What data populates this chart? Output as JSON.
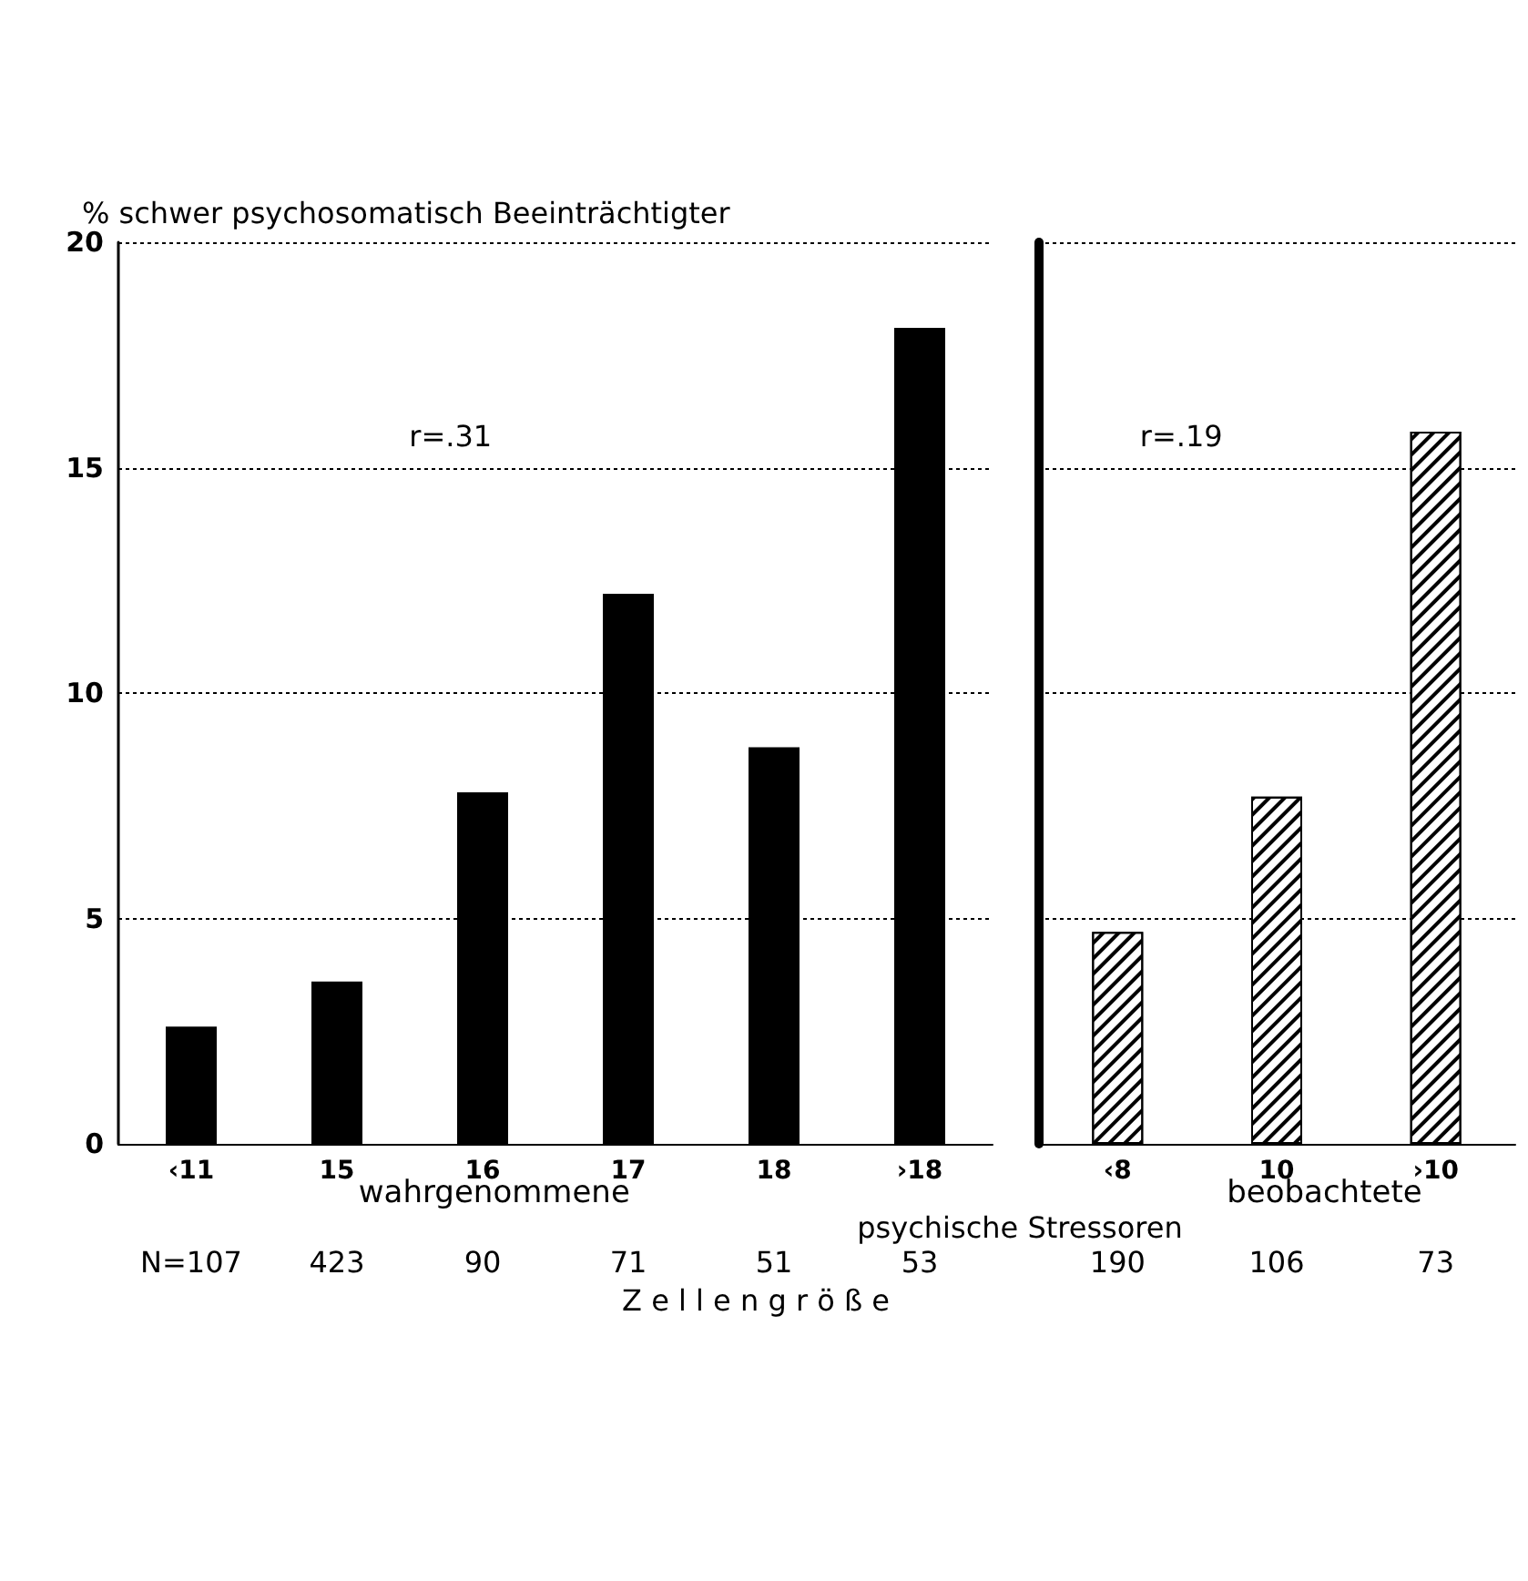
{
  "chart_data": [
    {
      "type": "bar",
      "ylabel": "% schwer psychosomatisch Beeinträchtigter",
      "xlabel": "wahrgenommene",
      "categories": [
        "‹11",
        "15",
        "16",
        "17",
        "18",
        "›18"
      ],
      "values": [
        2.6,
        3.6,
        7.8,
        12.2,
        8.8,
        18.1
      ],
      "color": "#000000",
      "ylim": [
        0,
        20
      ],
      "yticks": [
        0,
        5,
        10,
        15,
        20
      ],
      "grid": "y",
      "line_style": "dotted",
      "annotations": [
        "r=.31",
        "N=107",
        "423",
        "90",
        "71",
        "51",
        "53",
        "psychische Stressoren",
        "Z e l l e n g r ö ß e"
      ]
    },
    {
      "type": "bar",
      "xlabel": "beobachtete",
      "categories": [
        "‹8",
        "10",
        "›10"
      ],
      "values": [
        4.7,
        7.7,
        15.8
      ],
      "color": "#ffffff",
      "ylim": [
        0,
        20
      ],
      "yticks": [
        0,
        5,
        10,
        15,
        20
      ],
      "grid": "y",
      "line_style": "dotted",
      "tick_labels": "x",
      "annotations": [
        "r=.19",
        "190",
        "106",
        "73"
      ]
    }
  ]
}
